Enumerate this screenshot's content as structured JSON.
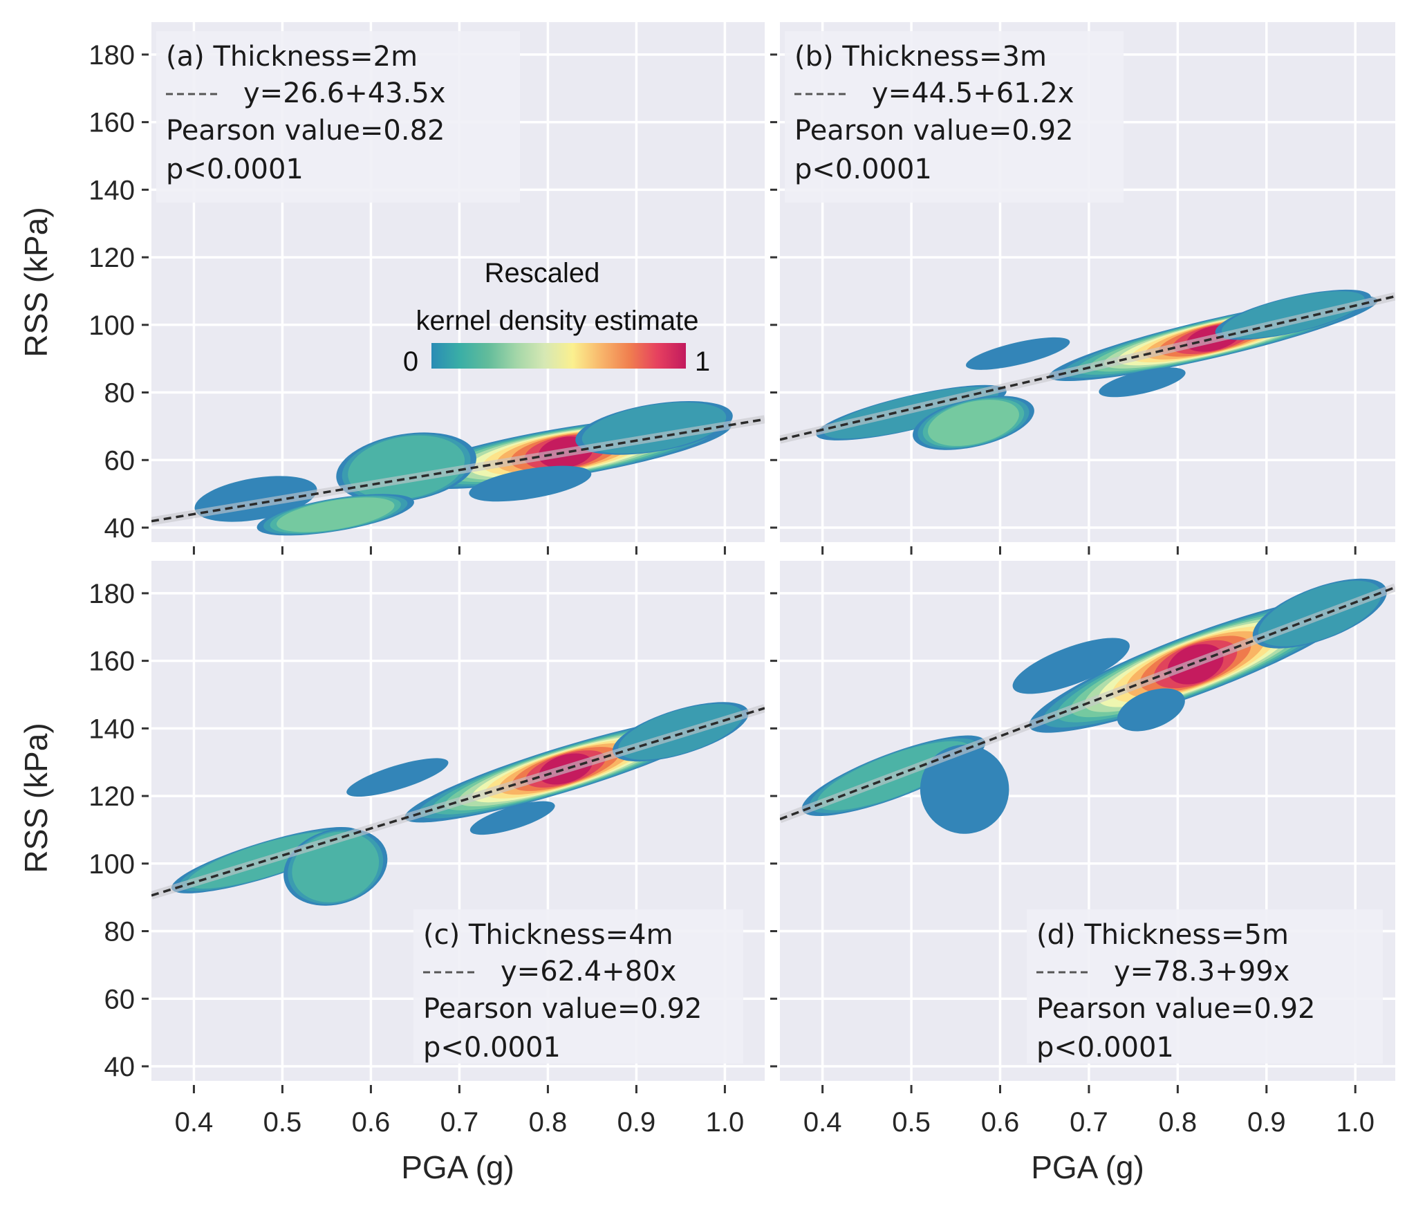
{
  "chart_data": {
    "type": "heatmap",
    "subtype": "2D kernel density contours with linear regression lines, 2x2 facets",
    "shared_x_axis": {
      "label": "PGA (g)",
      "range": [
        0.352,
        1.045
      ],
      "ticks": [
        0.4,
        0.5,
        0.6,
        0.7,
        0.8,
        0.9,
        1.0
      ],
      "tick_labels": [
        "0.4",
        "0.5",
        "0.6",
        "0.7",
        "0.8",
        "0.9",
        "1.0"
      ]
    },
    "shared_y_axis": {
      "label": "RSS (kPa)",
      "range": [
        35.7,
        189.6
      ],
      "ticks": [
        40,
        60,
        80,
        100,
        120,
        140,
        160,
        180
      ],
      "tick_labels": [
        "40",
        "60",
        "80",
        "100",
        "120",
        "140",
        "160",
        "180"
      ]
    },
    "grid": true,
    "colorbar": {
      "title_line1": "Rescaled",
      "title_line2": "kernel density estimate",
      "min_label": "0",
      "max_label": "1",
      "colormap": [
        "#2a8cb5",
        "#3aaea6",
        "#62bc9b",
        "#a3d6a8",
        "#d6e8b4",
        "#fbf08f",
        "#f8b66b",
        "#f07f4f",
        "#e6405f",
        "#c21a5e"
      ],
      "placement": "inside panel (a), center"
    },
    "level_colors": [
      "#3385b8",
      "#3b9cb0",
      "#4cb3a6",
      "#75c9a0",
      "#b0ddaa",
      "#eef6b0",
      "#fde38a",
      "#f9b464",
      "#ef7a4c",
      "#e0445c",
      "#c51b5e"
    ],
    "panels": [
      {
        "id": "a",
        "tag": "(a)",
        "thickness_label": "Thickness=2m",
        "equation": "y=26.6+43.5x",
        "intercept": 26.6,
        "slope": 43.5,
        "pearson": "Pearson value=0.82",
        "p_value": "p<0.0001",
        "legend_placement": "top-left",
        "clusters": [
          {
            "x": 0.82,
            "y": 62.3,
            "sx": 0.19,
            "sy": 3.3,
            "peak": 1.0,
            "off": 0.0
          },
          {
            "x": 0.64,
            "y": 57.8,
            "sx": 0.08,
            "sy": 4.5,
            "peak": 0.25,
            "off": 1.5
          },
          {
            "x": 0.92,
            "y": 69.5,
            "sx": 0.09,
            "sy": 3.2,
            "peak": 0.15,
            "off": 1.2
          },
          {
            "x": 0.78,
            "y": 53.0,
            "sx": 0.07,
            "sy": 2.0,
            "peak": 0.1,
            "off": 0
          },
          {
            "x": 0.47,
            "y": 48.5,
            "sx": 0.07,
            "sy": 2.8,
            "peak": 0.1,
            "off": 1.2
          },
          {
            "x": 0.56,
            "y": 43.8,
            "sx": 0.09,
            "sy": 2.2,
            "peak": 0.35,
            "off": -8.5
          }
        ]
      },
      {
        "id": "b",
        "tag": "(b)",
        "thickness_label": "Thickness=3m",
        "equation": "y=44.5+61.2x",
        "intercept": 44.5,
        "slope": 61.2,
        "pearson": "Pearson value=0.92",
        "p_value": "p<0.0001",
        "legend_placement": "top-left",
        "clusters": [
          {
            "x": 0.84,
            "y": 96.0,
            "sx": 0.19,
            "sy": 2.6,
            "peak": 1.0,
            "off": 0
          },
          {
            "x": 0.93,
            "y": 103.0,
            "sx": 0.09,
            "sy": 2.4,
            "peak": 0.2,
            "off": 0.8
          },
          {
            "x": 0.5,
            "y": 74.0,
            "sx": 0.11,
            "sy": 2.3,
            "peak": 0.22,
            "off": 0
          },
          {
            "x": 0.62,
            "y": 91.5,
            "sx": 0.06,
            "sy": 1.5,
            "peak": 0.1,
            "off": 9
          },
          {
            "x": 0.76,
            "y": 83.0,
            "sx": 0.05,
            "sy": 1.5,
            "peak": 0.1,
            "off": -8
          },
          {
            "x": 0.57,
            "y": 71.0,
            "sx": 0.07,
            "sy": 3.2,
            "peak": 0.35,
            "off": -8
          }
        ]
      },
      {
        "id": "c",
        "tag": "(c)",
        "thickness_label": "Thickness=4m",
        "equation": "y=62.4+80x",
        "intercept": 62.4,
        "slope": 80,
        "pearson": "Pearson value=0.92",
        "p_value": "p<0.0001",
        "legend_placement": "bottom-right",
        "clusters": [
          {
            "x": 0.82,
            "y": 128.0,
            "sx": 0.19,
            "sy": 3.0,
            "peak": 1.0,
            "off": 0
          },
          {
            "x": 0.95,
            "y": 139.0,
            "sx": 0.08,
            "sy": 3.0,
            "peak": 0.22,
            "off": 0.5
          },
          {
            "x": 0.48,
            "y": 101.0,
            "sx": 0.11,
            "sy": 2.4,
            "peak": 0.25,
            "off": 0
          },
          {
            "x": 0.63,
            "y": 125.5,
            "sx": 0.06,
            "sy": 1.6,
            "peak": 0.1,
            "off": 10
          },
          {
            "x": 0.76,
            "y": 113.5,
            "sx": 0.05,
            "sy": 1.5,
            "peak": 0.1,
            "off": -10
          },
          {
            "x": 0.56,
            "y": 99.0,
            "sx": 0.06,
            "sy": 5.0,
            "peak": 0.3,
            "off": -9
          }
        ]
      },
      {
        "id": "d",
        "tag": "(d)",
        "thickness_label": "Thickness=5m",
        "equation": "y=78.3+99x",
        "intercept": 78.3,
        "slope": 99,
        "pearson": "Pearson value=0.92",
        "p_value": "p<0.0001",
        "legend_placement": "bottom-right",
        "clusters": [
          {
            "x": 0.82,
            "y": 159.0,
            "sx": 0.2,
            "sy": 4.0,
            "peak": 1.0,
            "off": 0
          },
          {
            "x": 0.96,
            "y": 174.0,
            "sx": 0.08,
            "sy": 3.5,
            "peak": 0.22,
            "off": 0.5
          },
          {
            "x": 0.48,
            "y": 126.0,
            "sx": 0.11,
            "sy": 3.0,
            "peak": 0.25,
            "off": 0
          },
          {
            "x": 0.68,
            "y": 158.5,
            "sx": 0.07,
            "sy": 2.5,
            "peak": 0.1,
            "off": 12
          },
          {
            "x": 0.77,
            "y": 145.5,
            "sx": 0.04,
            "sy": 2.5,
            "peak": 0.1,
            "off": -9
          },
          {
            "x": 0.56,
            "y": 122.0,
            "sx": 0.05,
            "sy": 6.0,
            "peak": 0.1,
            "off": -10
          }
        ]
      }
    ]
  }
}
